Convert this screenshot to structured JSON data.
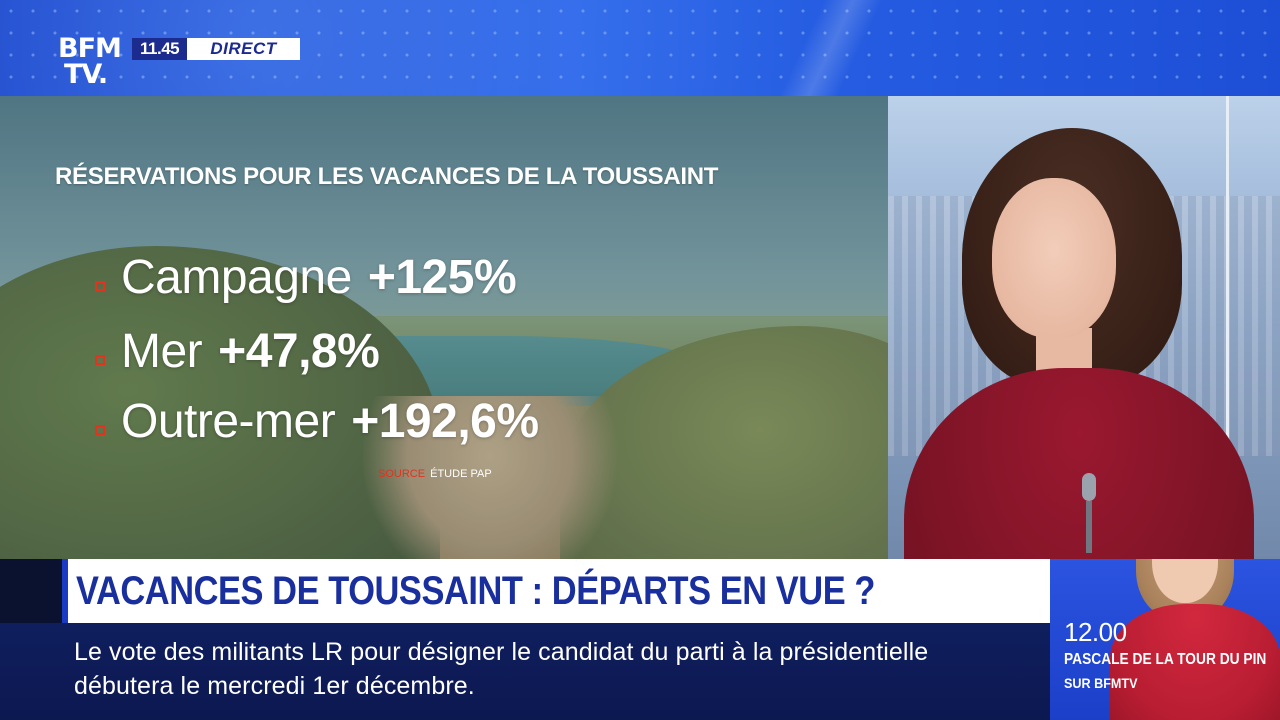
{
  "channel": {
    "logo_line1": "BFM",
    "logo_line2": "TV.",
    "time": "11.45",
    "live_label": "DIRECT"
  },
  "graphic": {
    "title": "RÉSERVATIONS POUR LES VACANCES DE LA TOUSSAINT",
    "stats": [
      {
        "label": "Campagne",
        "value": "+125%"
      },
      {
        "label": "Mer",
        "value": "+47,8%"
      },
      {
        "label": "Outre-mer",
        "value": "+192,6%"
      }
    ],
    "source_label": "SOURCE",
    "source_text": "ÉTUDE PAP",
    "bullet_color": "#e2331e"
  },
  "headline": "VACANCES DE TOUSSAINT : DÉPARTS EN VUE ?",
  "ticker": "Le vote des militants LR pour désigner le candidat du parti à la présidentielle débutera le mercredi 1er décembre.",
  "next_show": {
    "time": "12.00",
    "title": "PASCALE DE LA TOUR DU PIN",
    "channel": "SUR BFMTV"
  },
  "colors": {
    "brand_blue": "#1a3bc4",
    "headline_text": "#1a2f9e",
    "ticker_bg": "#0f1e5e",
    "accent_red": "#e2331e"
  }
}
